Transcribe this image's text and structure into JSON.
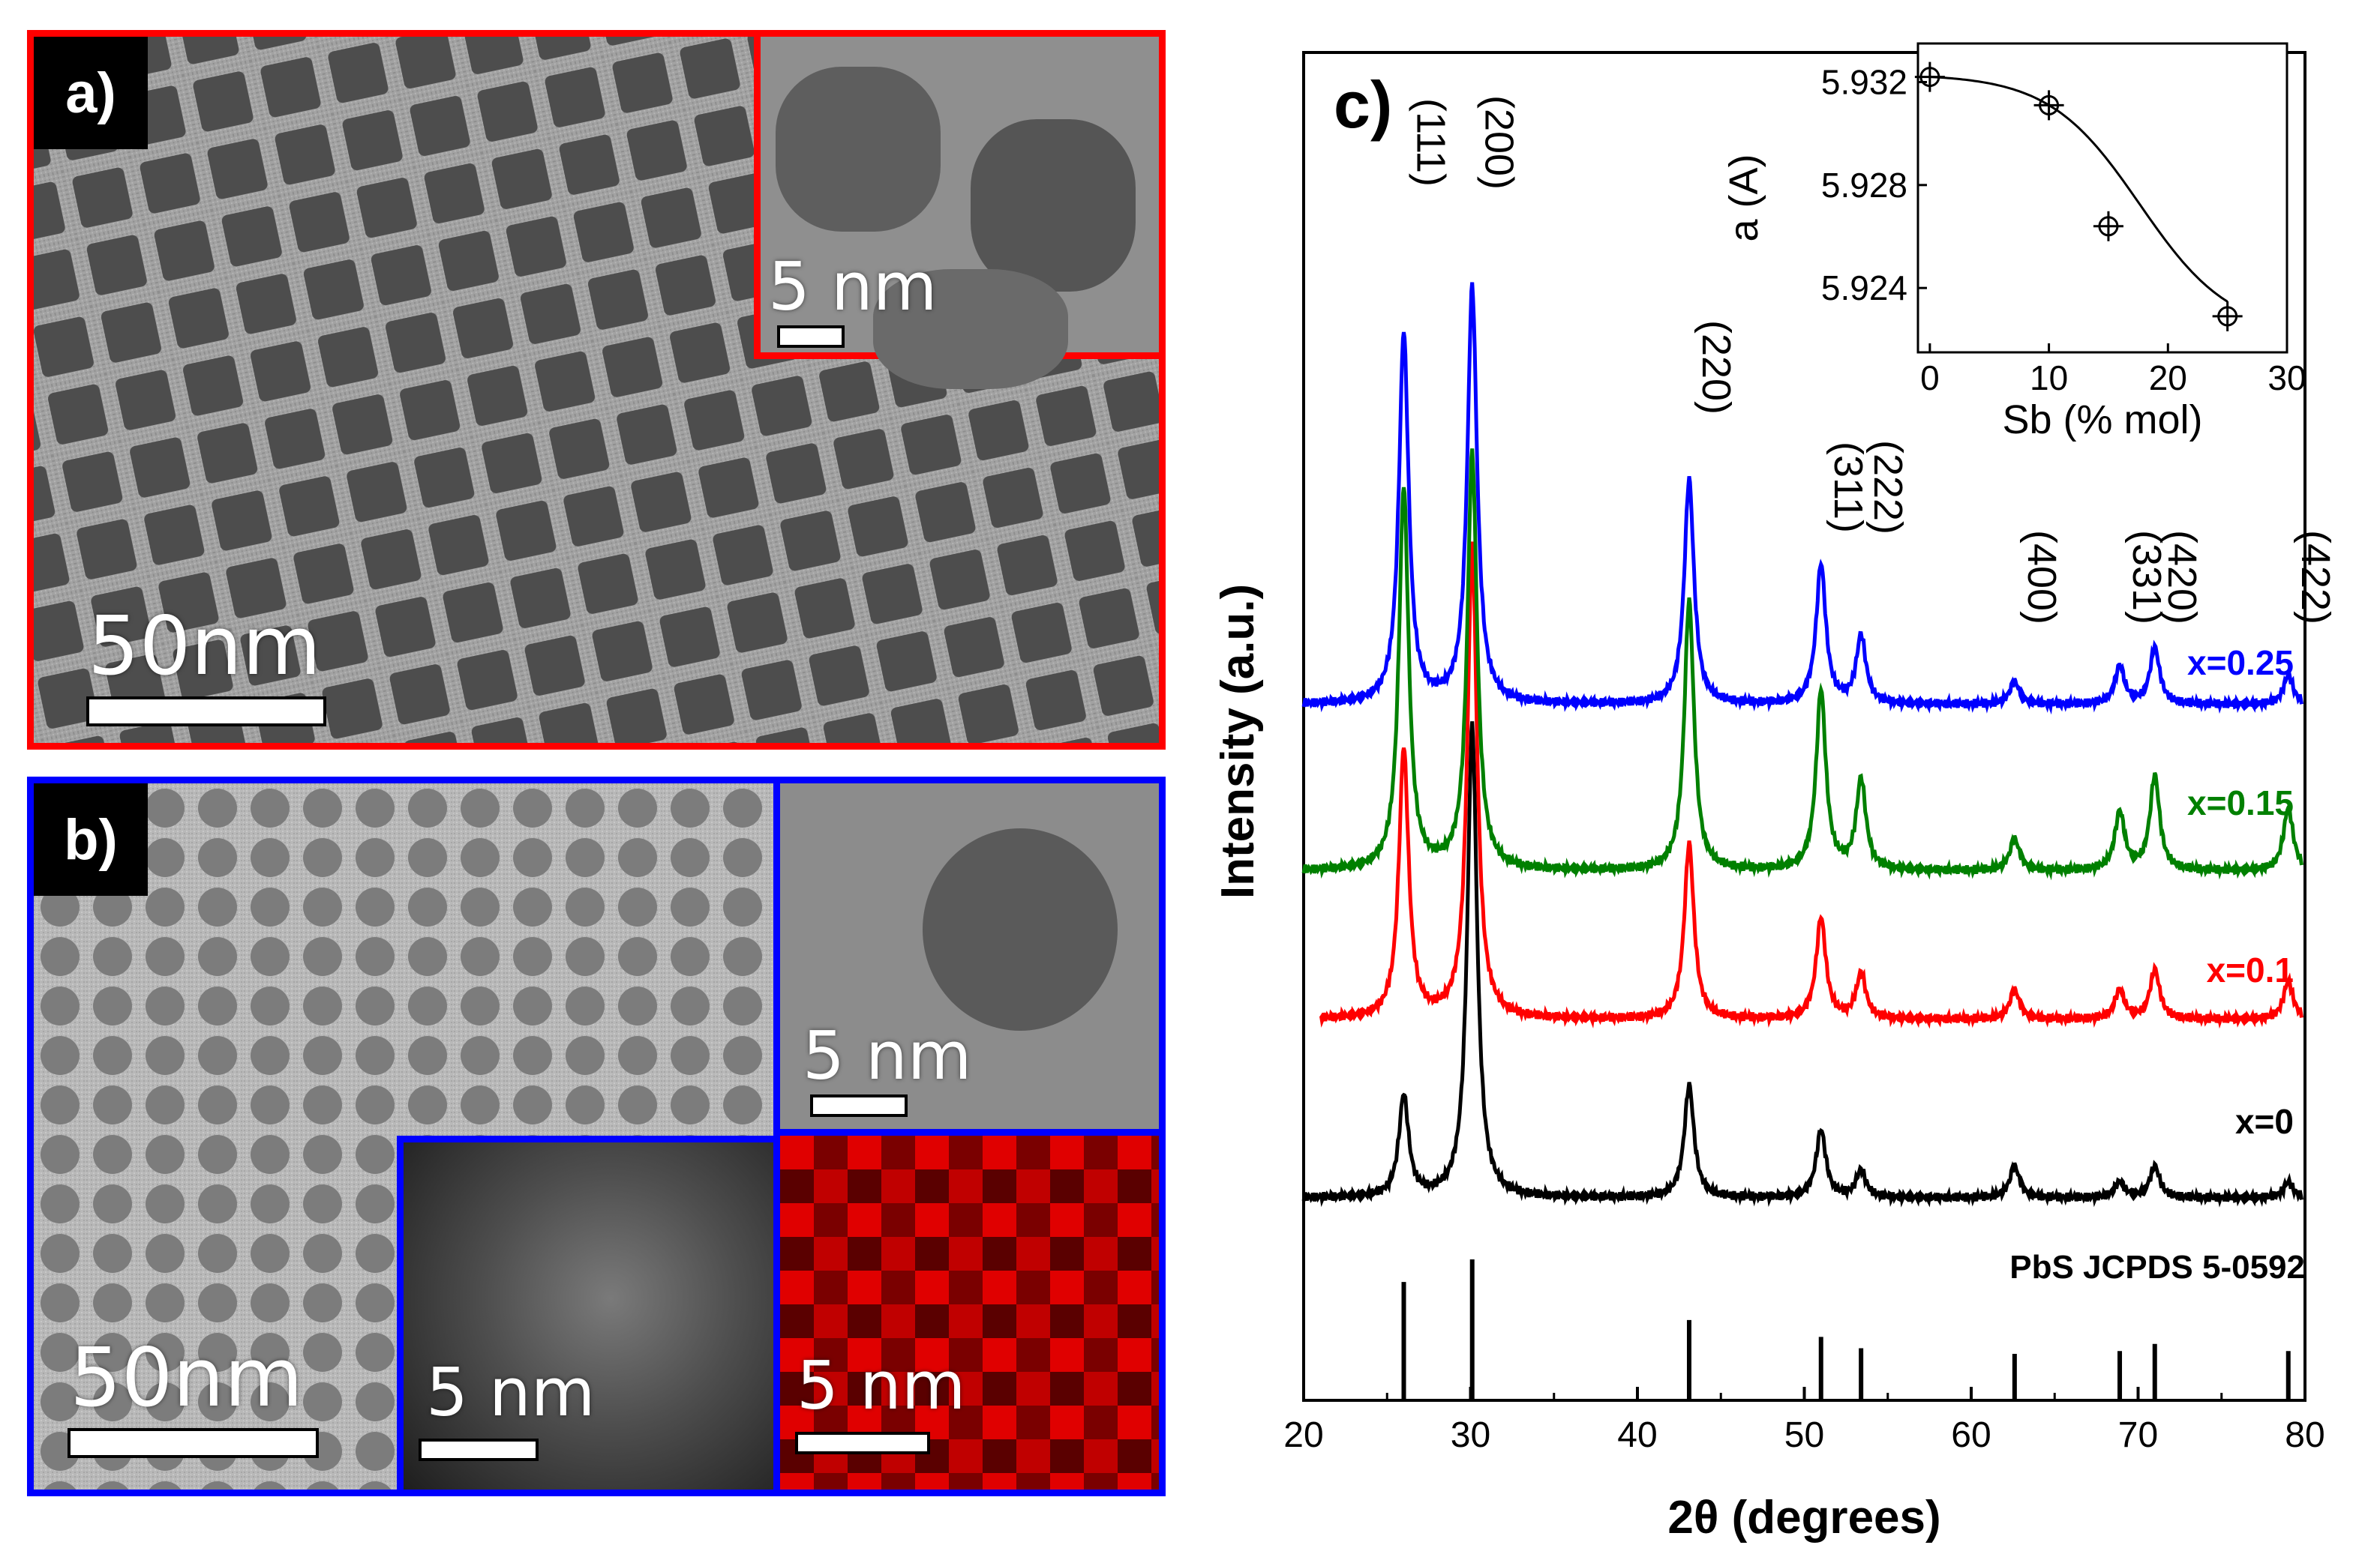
{
  "panel_a": {
    "label": "a)",
    "scale_main": "50nm",
    "scale_inset": "5 nm",
    "border_color": "#ff0000"
  },
  "panel_b": {
    "label": "b)",
    "scale_main": "50nm",
    "scale_hrtem": "5 nm",
    "scale_haadf": "5 nm",
    "scale_map": "5 nm",
    "border_color": "#0000ff"
  },
  "panel_c": {
    "label": "c)"
  },
  "chart_data": [
    {
      "type": "line",
      "xlabel": "2θ (degrees)",
      "ylabel": "Intensity (a.u.)",
      "xlim": [
        20,
        80
      ],
      "xticks": [
        20,
        30,
        40,
        50,
        60,
        70,
        80
      ],
      "peak_labels": [
        {
          "hkl": "(111)",
          "x": 26.0
        },
        {
          "hkl": "(200)",
          "x": 30.1
        },
        {
          "hkl": "(220)",
          "x": 43.1
        },
        {
          "hkl": "(311)",
          "x": 51.0
        },
        {
          "hkl": "(222)",
          "x": 53.4
        },
        {
          "hkl": "(400)",
          "x": 62.6
        },
        {
          "hkl": "(331)",
          "x": 68.9
        },
        {
          "hkl": "(420)",
          "x": 71.0
        },
        {
          "hkl": "(422)",
          "x": 79.0
        }
      ],
      "reference": {
        "name": "PbS  JCPDS 5-0592",
        "lines": [
          {
            "x": 26.0,
            "intensity": 0.84
          },
          {
            "x": 30.1,
            "intensity": 1.0
          },
          {
            "x": 43.1,
            "intensity": 0.57
          },
          {
            "x": 51.0,
            "intensity": 0.45
          },
          {
            "x": 53.4,
            "intensity": 0.37
          },
          {
            "x": 62.6,
            "intensity": 0.33
          },
          {
            "x": 68.9,
            "intensity": 0.35
          },
          {
            "x": 71.0,
            "intensity": 0.4
          },
          {
            "x": 79.0,
            "intensity": 0.35
          }
        ]
      },
      "series": [
        {
          "name": "x=0",
          "color": "#000000",
          "peaks": [
            [
              26.0,
              0.45
            ],
            [
              30.1,
              2.1
            ],
            [
              43.1,
              0.5
            ],
            [
              51.0,
              0.3
            ],
            [
              53.4,
              0.12
            ],
            [
              62.6,
              0.14
            ],
            [
              68.9,
              0.07
            ],
            [
              71.0,
              0.14
            ],
            [
              79.0,
              0.07
            ]
          ]
        },
        {
          "name": "x=0.1",
          "color": "#ff0000",
          "peaks": [
            [
              26.0,
              1.2
            ],
            [
              30.1,
              2.1
            ],
            [
              43.1,
              0.78
            ],
            [
              51.0,
              0.45
            ],
            [
              53.4,
              0.2
            ],
            [
              62.6,
              0.13
            ],
            [
              68.9,
              0.13
            ],
            [
              71.0,
              0.22
            ],
            [
              79.0,
              0.17
            ]
          ]
        },
        {
          "name": "x=0.15",
          "color": "#008000",
          "peaks": [
            [
              26.0,
              1.7
            ],
            [
              30.1,
              1.85
            ],
            [
              43.1,
              1.2
            ],
            [
              51.0,
              0.8
            ],
            [
              53.4,
              0.4
            ],
            [
              62.6,
              0.14
            ],
            [
              68.9,
              0.26
            ],
            [
              71.0,
              0.42
            ],
            [
              79.0,
              0.28
            ]
          ]
        },
        {
          "name": "x=0.25",
          "color": "#0000ff",
          "peaks": [
            [
              26.0,
              1.65
            ],
            [
              30.1,
              1.85
            ],
            [
              43.1,
              1.0
            ],
            [
              51.0,
              0.62
            ],
            [
              53.4,
              0.3
            ],
            [
              62.6,
              0.1
            ],
            [
              68.9,
              0.17
            ],
            [
              71.0,
              0.25
            ],
            [
              79.0,
              0.13
            ]
          ]
        }
      ]
    },
    {
      "type": "scatter",
      "xlabel": "Sb  (% mol)",
      "ylabel": "a (A)",
      "xlim": [
        -1,
        30
      ],
      "ylim": [
        5.9215,
        5.9335
      ],
      "xticks": [
        0,
        10,
        20,
        30
      ],
      "yticks": [
        5.924,
        5.928,
        5.932
      ],
      "points": [
        {
          "x": 0,
          "y": 5.9322
        },
        {
          "x": 10,
          "y": 5.9311
        },
        {
          "x": 15,
          "y": 5.9264
        },
        {
          "x": 25,
          "y": 5.9229
        }
      ],
      "fit": "sigmoid"
    }
  ]
}
